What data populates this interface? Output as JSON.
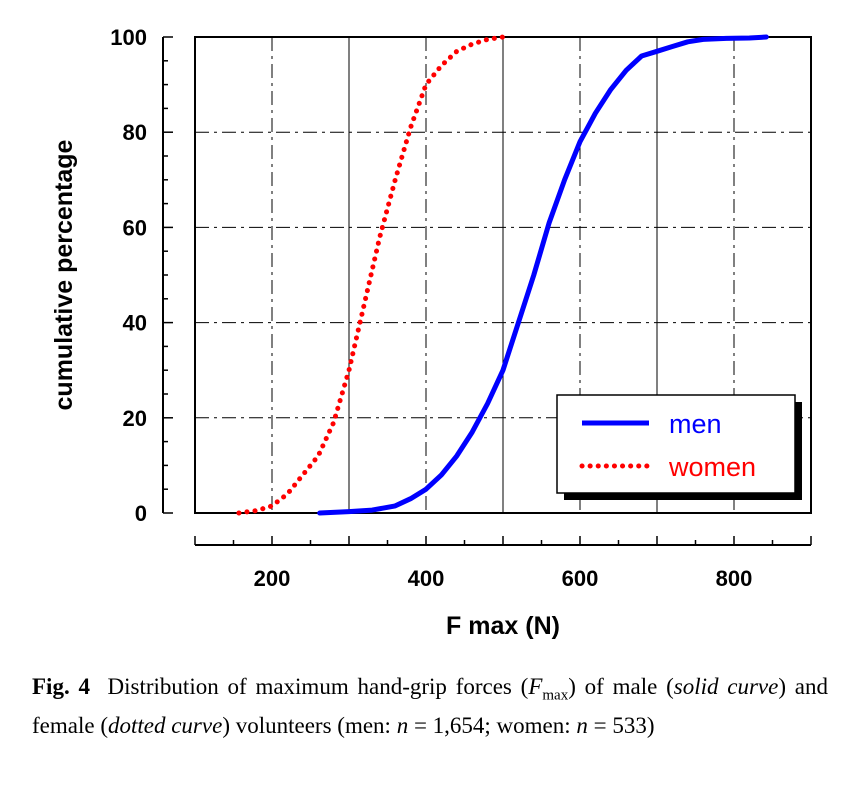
{
  "chart_data": {
    "type": "line",
    "xlabel": "F max (N)",
    "ylabel": "cumulative percentage",
    "xlim": [
      100,
      900
    ],
    "ylim": [
      0,
      100
    ],
    "x_ticks": [
      200,
      400,
      600,
      800
    ],
    "y_ticks": [
      0,
      20,
      40,
      60,
      80,
      100
    ],
    "grid": true,
    "legend": "bottom-right",
    "series": [
      {
        "name": "men",
        "style": "solid",
        "color": "#0000ff",
        "points": [
          [
            262,
            0
          ],
          [
            300,
            0.3
          ],
          [
            330,
            0.6
          ],
          [
            360,
            1.5
          ],
          [
            380,
            3
          ],
          [
            400,
            5
          ],
          [
            420,
            8
          ],
          [
            440,
            12
          ],
          [
            460,
            17
          ],
          [
            480,
            23
          ],
          [
            500,
            30
          ],
          [
            520,
            40
          ],
          [
            540,
            50
          ],
          [
            560,
            61
          ],
          [
            580,
            70
          ],
          [
            600,
            78
          ],
          [
            620,
            84
          ],
          [
            640,
            89
          ],
          [
            660,
            93
          ],
          [
            680,
            96
          ],
          [
            700,
            97
          ],
          [
            720,
            98
          ],
          [
            740,
            99
          ],
          [
            760,
            99.5
          ],
          [
            790,
            99.7
          ],
          [
            820,
            99.8
          ],
          [
            842,
            100
          ]
        ]
      },
      {
        "name": "women",
        "style": "dotted",
        "color": "#ff0000",
        "points": [
          [
            157,
            0
          ],
          [
            180,
            0.5
          ],
          [
            200,
            1.5
          ],
          [
            220,
            4
          ],
          [
            240,
            8
          ],
          [
            260,
            12
          ],
          [
            280,
            19
          ],
          [
            300,
            30
          ],
          [
            320,
            44
          ],
          [
            340,
            58
          ],
          [
            360,
            70
          ],
          [
            380,
            81
          ],
          [
            400,
            90
          ],
          [
            420,
            94
          ],
          [
            440,
            97
          ],
          [
            460,
            98.5
          ],
          [
            480,
            99.5
          ],
          [
            500,
            100
          ]
        ]
      }
    ]
  },
  "caption": {
    "label": "Fig. 4",
    "text_1": "Distribution of maximum hand-grip forces (",
    "symbol": "F",
    "symbol_sub": "max",
    "text_2": ") of male (",
    "solid": "solid curve",
    "text_3": ") and female (",
    "dotted": "dotted curve",
    "text_4": ") volunteers (men: ",
    "n1_var": "n",
    "n1_text": " = 1,654; women: ",
    "n2_var": "n",
    "n2_text": " = 533)"
  }
}
